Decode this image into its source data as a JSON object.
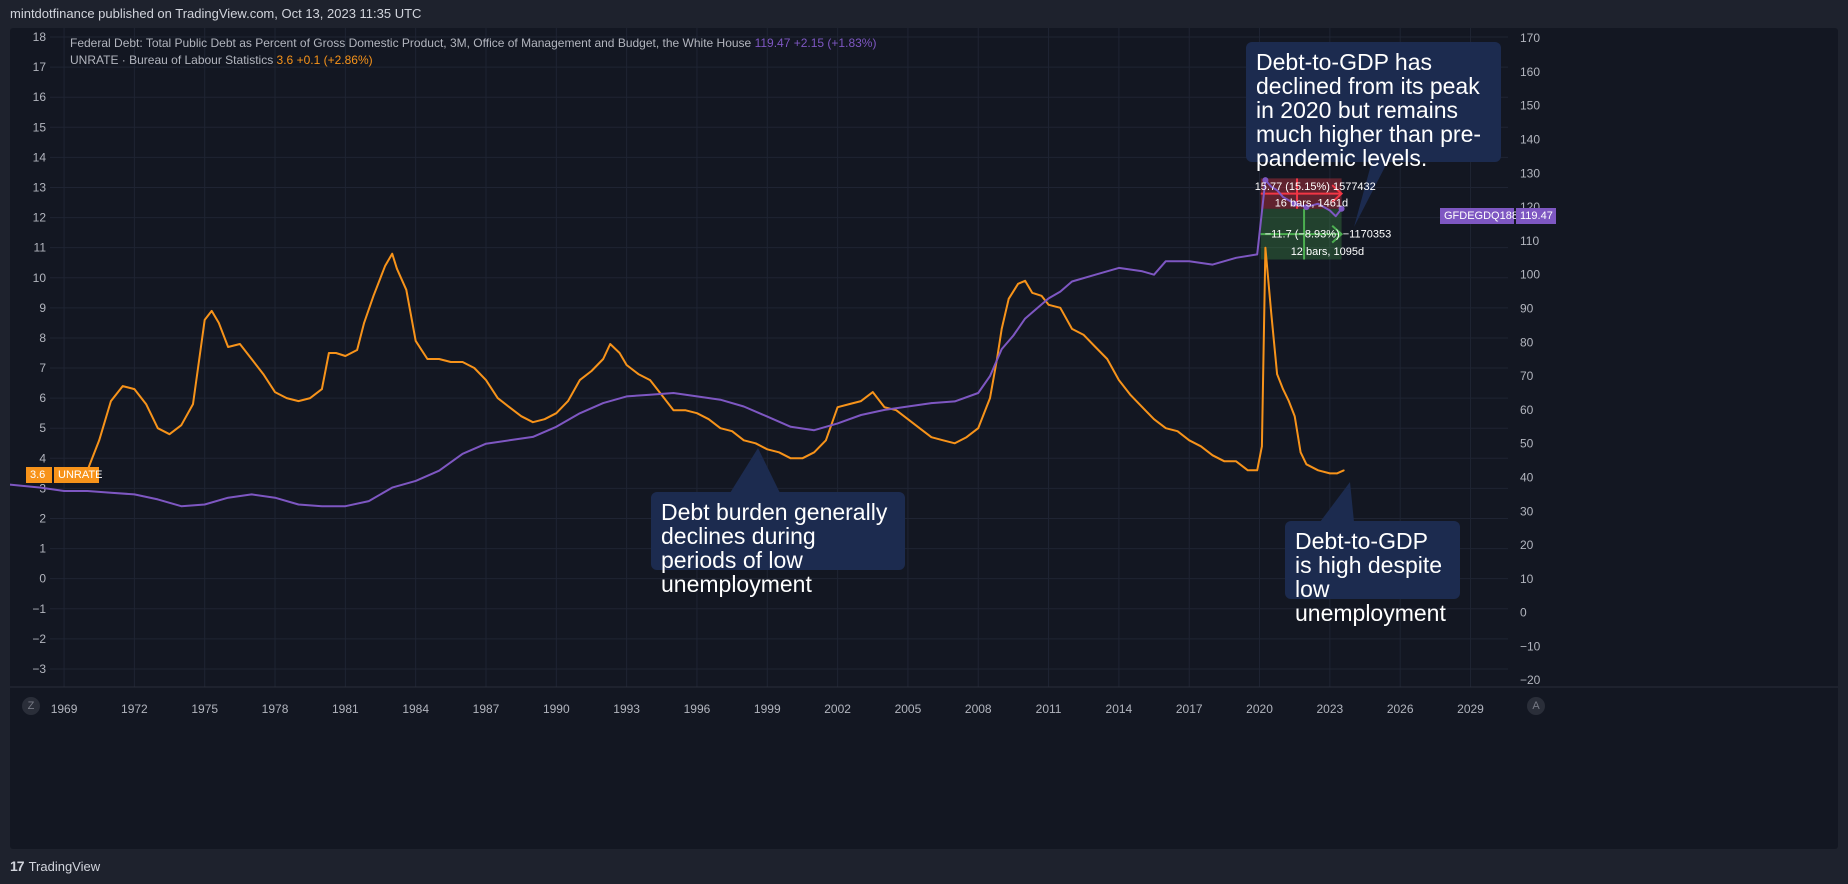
{
  "header": {
    "published": "mintdotfinance published on TradingView.com, Oct 13, 2023 11:35 UTC"
  },
  "legend": {
    "debt_name": "Federal Debt: Total Public Debt as Percent of Gross Domestic Product, 3M, Office of Management and Budget, the White House",
    "debt_value": "119.47",
    "debt_change": "+2.15 (+1.83%)",
    "unrate_name": "UNRATE · Bureau of Labour Statistics",
    "unrate_value": "3.6",
    "unrate_change": "+0.1 (+2.86%)"
  },
  "tags": {
    "unrate_value": "3.6",
    "unrate_label": "UNRATE",
    "debt_label": "GFDEGDQ188S",
    "debt_value": "119.47"
  },
  "measure": {
    "up_label": "15.77 (15.15%) 1577432",
    "up_bars": "16 bars, 1461d",
    "down_label": "−11.7 (−8.93%) −1170353",
    "down_bars": "12 bars, 1095d"
  },
  "callouts": {
    "top": "Debt-to-GDP has declined from its peak in 2020 but remains much higher than pre-pandemic levels.",
    "middle": "Debt burden generally declines during periods of low unemployment",
    "bottom": "Debt-to-GDP is high despite low unemployment"
  },
  "buttons": {
    "left": "Z",
    "right": "A"
  },
  "footer": {
    "logo": "17",
    "brand": "TradingView"
  },
  "colors": {
    "debt": "#7e57c2",
    "unrate": "#f7931a",
    "bg": "#131722",
    "measure_up": "#f23645",
    "measure_down": "#4caf50"
  },
  "chart_data": {
    "type": "line",
    "x_axis": {
      "range": [
        1968.4,
        2030.6
      ],
      "ticks": [
        1969,
        1972,
        1975,
        1978,
        1981,
        1984,
        1987,
        1990,
        1993,
        1996,
        1999,
        2002,
        2005,
        2008,
        2011,
        2014,
        2017,
        2020,
        2023,
        2026,
        2029
      ]
    },
    "y_left": {
      "range": [
        -3.6,
        18.3
      ],
      "ticks": [
        18,
        17,
        16,
        15,
        14,
        13,
        12,
        11,
        10,
        9,
        8,
        7,
        6,
        5,
        4,
        3,
        2,
        1,
        0,
        -1,
        -2,
        -3
      ]
    },
    "y_right": {
      "range": [
        -22,
        173
      ],
      "ticks": [
        170,
        160,
        150,
        140,
        130,
        120,
        110,
        100,
        90,
        80,
        70,
        60,
        50,
        40,
        30,
        20,
        10,
        0,
        -10,
        -20
      ]
    },
    "series": [
      {
        "name": "UNRATE",
        "axis": "left",
        "points": [
          [
            1970.0,
            3.6
          ],
          [
            1970.5,
            4.6
          ],
          [
            1971.0,
            5.9
          ],
          [
            1971.5,
            6.4
          ],
          [
            1972.0,
            6.3
          ],
          [
            1972.5,
            5.8
          ],
          [
            1973.0,
            5.0
          ],
          [
            1973.5,
            4.8
          ],
          [
            1974.0,
            5.1
          ],
          [
            1974.5,
            5.8
          ],
          [
            1975.0,
            8.6
          ],
          [
            1975.3,
            8.9
          ],
          [
            1975.6,
            8.5
          ],
          [
            1976.0,
            7.7
          ],
          [
            1976.5,
            7.8
          ],
          [
            1977.0,
            7.3
          ],
          [
            1977.5,
            6.8
          ],
          [
            1978.0,
            6.2
          ],
          [
            1978.5,
            6.0
          ],
          [
            1979.0,
            5.9
          ],
          [
            1979.5,
            6.0
          ],
          [
            1980.0,
            6.3
          ],
          [
            1980.3,
            7.5
          ],
          [
            1980.6,
            7.5
          ],
          [
            1981.0,
            7.4
          ],
          [
            1981.5,
            7.6
          ],
          [
            1981.8,
            8.5
          ],
          [
            1982.2,
            9.4
          ],
          [
            1982.7,
            10.4
          ],
          [
            1983.0,
            10.8
          ],
          [
            1983.2,
            10.3
          ],
          [
            1983.6,
            9.6
          ],
          [
            1984.0,
            7.9
          ],
          [
            1984.5,
            7.3
          ],
          [
            1985.0,
            7.3
          ],
          [
            1985.5,
            7.2
          ],
          [
            1986.0,
            7.2
          ],
          [
            1986.5,
            7.0
          ],
          [
            1987.0,
            6.6
          ],
          [
            1987.5,
            6.0
          ],
          [
            1988.0,
            5.7
          ],
          [
            1988.5,
            5.4
          ],
          [
            1989.0,
            5.2
          ],
          [
            1989.5,
            5.3
          ],
          [
            1990.0,
            5.5
          ],
          [
            1990.5,
            5.9
          ],
          [
            1991.0,
            6.6
          ],
          [
            1991.5,
            6.9
          ],
          [
            1992.0,
            7.3
          ],
          [
            1992.3,
            7.8
          ],
          [
            1992.7,
            7.5
          ],
          [
            1993.0,
            7.1
          ],
          [
            1993.5,
            6.8
          ],
          [
            1994.0,
            6.6
          ],
          [
            1994.5,
            6.1
          ],
          [
            1995.0,
            5.6
          ],
          [
            1995.5,
            5.6
          ],
          [
            1996.0,
            5.5
          ],
          [
            1996.5,
            5.3
          ],
          [
            1997.0,
            5.0
          ],
          [
            1997.5,
            4.9
          ],
          [
            1998.0,
            4.6
          ],
          [
            1998.5,
            4.5
          ],
          [
            1999.0,
            4.3
          ],
          [
            1999.5,
            4.2
          ],
          [
            2000.0,
            4.0
          ],
          [
            2000.5,
            4.0
          ],
          [
            2001.0,
            4.2
          ],
          [
            2001.5,
            4.6
          ],
          [
            2002.0,
            5.7
          ],
          [
            2002.5,
            5.8
          ],
          [
            2003.0,
            5.9
          ],
          [
            2003.5,
            6.2
          ],
          [
            2004.0,
            5.7
          ],
          [
            2004.5,
            5.6
          ],
          [
            2005.0,
            5.3
          ],
          [
            2005.5,
            5.0
          ],
          [
            2006.0,
            4.7
          ],
          [
            2006.5,
            4.6
          ],
          [
            2007.0,
            4.5
          ],
          [
            2007.5,
            4.7
          ],
          [
            2008.0,
            5.0
          ],
          [
            2008.5,
            6.0
          ],
          [
            2008.8,
            7.3
          ],
          [
            2009.0,
            8.3
          ],
          [
            2009.3,
            9.3
          ],
          [
            2009.7,
            9.8
          ],
          [
            2010.0,
            9.9
          ],
          [
            2010.3,
            9.5
          ],
          [
            2010.7,
            9.4
          ],
          [
            2011.0,
            9.1
          ],
          [
            2011.5,
            9.0
          ],
          [
            2012.0,
            8.3
          ],
          [
            2012.5,
            8.1
          ],
          [
            2013.0,
            7.7
          ],
          [
            2013.5,
            7.3
          ],
          [
            2014.0,
            6.6
          ],
          [
            2014.5,
            6.1
          ],
          [
            2015.0,
            5.7
          ],
          [
            2015.5,
            5.3
          ],
          [
            2016.0,
            5.0
          ],
          [
            2016.5,
            4.9
          ],
          [
            2017.0,
            4.6
          ],
          [
            2017.5,
            4.4
          ],
          [
            2018.0,
            4.1
          ],
          [
            2018.5,
            3.9
          ],
          [
            2019.0,
            3.9
          ],
          [
            2019.5,
            3.6
          ],
          [
            2019.9,
            3.6
          ],
          [
            2020.1,
            4.4
          ],
          [
            2020.25,
            11.0
          ],
          [
            2020.5,
            8.8
          ],
          [
            2020.75,
            6.8
          ],
          [
            2021.0,
            6.3
          ],
          [
            2021.25,
            5.9
          ],
          [
            2021.5,
            5.4
          ],
          [
            2021.75,
            4.2
          ],
          [
            2022.0,
            3.8
          ],
          [
            2022.5,
            3.6
          ],
          [
            2023.0,
            3.5
          ],
          [
            2023.3,
            3.5
          ],
          [
            2023.6,
            3.6
          ]
        ]
      },
      {
        "name": "GFDEGDQ188S",
        "axis": "right",
        "points": [
          [
            1966.5,
            38
          ],
          [
            1968.0,
            37
          ],
          [
            1969.0,
            36
          ],
          [
            1970.0,
            36
          ],
          [
            1971.0,
            35.5
          ],
          [
            1972.0,
            35
          ],
          [
            1973.0,
            33.5
          ],
          [
            1974.0,
            31.5
          ],
          [
            1975.0,
            32
          ],
          [
            1976.0,
            34
          ],
          [
            1977.0,
            35
          ],
          [
            1978.0,
            34
          ],
          [
            1979.0,
            32
          ],
          [
            1980.0,
            31.5
          ],
          [
            1981.0,
            31.5
          ],
          [
            1982.0,
            33
          ],
          [
            1983.0,
            37
          ],
          [
            1984.0,
            39
          ],
          [
            1985.0,
            42
          ],
          [
            1986.0,
            47
          ],
          [
            1987.0,
            50
          ],
          [
            1988.0,
            51
          ],
          [
            1989.0,
            52
          ],
          [
            1990.0,
            55
          ],
          [
            1991.0,
            59
          ],
          [
            1992.0,
            62
          ],
          [
            1993.0,
            64
          ],
          [
            1994.0,
            64.5
          ],
          [
            1995.0,
            65
          ],
          [
            1996.0,
            64
          ],
          [
            1997.0,
            63
          ],
          [
            1998.0,
            61
          ],
          [
            1999.0,
            58
          ],
          [
            2000.0,
            55
          ],
          [
            2001.0,
            54
          ],
          [
            2002.0,
            56
          ],
          [
            2003.0,
            58.5
          ],
          [
            2004.0,
            60
          ],
          [
            2005.0,
            61
          ],
          [
            2006.0,
            62
          ],
          [
            2007.0,
            62.5
          ],
          [
            2008.0,
            65
          ],
          [
            2008.5,
            70
          ],
          [
            2009.0,
            78
          ],
          [
            2009.5,
            82
          ],
          [
            2010.0,
            87
          ],
          [
            2010.5,
            90
          ],
          [
            2011.0,
            93
          ],
          [
            2011.5,
            95
          ],
          [
            2012.0,
            98
          ],
          [
            2013.0,
            100
          ],
          [
            2014.0,
            102
          ],
          [
            2015.0,
            101
          ],
          [
            2015.5,
            100
          ],
          [
            2016.0,
            104
          ],
          [
            2017.0,
            104
          ],
          [
            2018.0,
            103
          ],
          [
            2019.0,
            105
          ],
          [
            2019.9,
            106
          ],
          [
            2020.25,
            128
          ],
          [
            2020.5,
            126
          ],
          [
            2020.75,
            125
          ],
          [
            2021.0,
            123
          ],
          [
            2021.5,
            121
          ],
          [
            2022.0,
            120
          ],
          [
            2022.5,
            121
          ],
          [
            2023.0,
            119
          ],
          [
            2023.25,
            117.3
          ],
          [
            2023.5,
            119.5
          ]
        ]
      }
    ]
  }
}
